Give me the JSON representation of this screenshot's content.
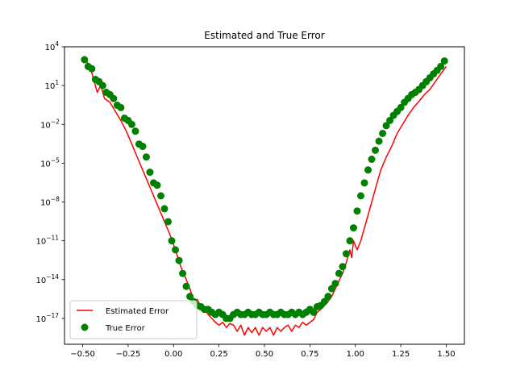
{
  "chart_data": {
    "type": "line",
    "title": "Estimated and True Error",
    "xlabel": "",
    "ylabel": "",
    "yscale": "log",
    "xlim": [
      -0.6,
      1.6
    ],
    "ylim": [
      1e-19,
      10000
    ],
    "xticks": [
      -0.5,
      -0.25,
      0.0,
      0.25,
      0.5,
      0.75,
      1.0,
      1.25,
      1.5
    ],
    "xtick_labels": [
      "−0.50",
      "−0.25",
      "0.00",
      "0.25",
      "0.50",
      "0.75",
      "1.00",
      "1.25",
      "1.50"
    ],
    "yticks": [
      1e-17,
      1e-14,
      1e-11,
      1e-08,
      1e-05,
      0.01,
      10,
      10000
    ],
    "ytick_labels": [
      {
        "base": "10",
        "exp": "−17"
      },
      {
        "base": "10",
        "exp": "−14"
      },
      {
        "base": "10",
        "exp": "−11"
      },
      {
        "base": "10",
        "exp": "−8"
      },
      {
        "base": "10",
        "exp": "−5"
      },
      {
        "base": "10",
        "exp": "−2"
      },
      {
        "base": "10",
        "exp": "1"
      },
      {
        "base": "10",
        "exp": "4"
      }
    ],
    "grid": false,
    "legend_position": "lower-left",
    "series": [
      {
        "name": "Estimated Error",
        "style": "line",
        "color": "#ff0000",
        "x": [
          -0.48,
          -0.45,
          -0.42,
          -0.4,
          -0.38,
          -0.35,
          -0.32,
          -0.29,
          -0.26,
          -0.23,
          -0.2,
          -0.17,
          -0.14,
          -0.11,
          -0.08,
          -0.05,
          -0.02,
          0.01,
          0.04,
          0.07,
          0.09,
          0.11,
          0.13,
          0.15,
          0.17,
          0.19,
          0.21,
          0.23,
          0.25,
          0.27,
          0.29,
          0.31,
          0.33,
          0.35,
          0.37,
          0.39,
          0.41,
          0.43,
          0.45,
          0.47,
          0.49,
          0.51,
          0.53,
          0.55,
          0.57,
          0.59,
          0.61,
          0.63,
          0.65,
          0.67,
          0.69,
          0.71,
          0.73,
          0.75,
          0.77,
          0.79,
          0.81,
          0.83,
          0.85,
          0.87,
          0.89,
          0.91,
          0.93,
          0.95,
          0.97,
          0.98,
          0.99,
          1.01,
          1.03,
          1.05,
          1.08,
          1.11,
          1.14,
          1.17,
          1.2,
          1.23,
          1.26,
          1.29,
          1.32,
          1.35,
          1.38,
          1.41,
          1.44,
          1.47,
          1.5
        ],
        "y": [
          1000,
          100,
          3,
          10,
          1,
          0.5,
          0.1,
          0.02,
          0.003,
          0.0003,
          3e-05,
          3e-06,
          3e-07,
          3e-08,
          3e-09,
          3e-10,
          3e-11,
          2e-12,
          1e-13,
          1e-14,
          2e-15,
          2e-16,
          3e-16,
          8e-17,
          5e-17,
          2e-17,
          1e-17,
          5e-18,
          3e-18,
          5e-18,
          2e-18,
          4e-18,
          3e-18,
          1e-18,
          3e-18,
          5e-19,
          2e-18,
          8e-19,
          2e-18,
          5e-19,
          2e-18,
          1e-18,
          2e-18,
          5e-19,
          2e-18,
          1e-18,
          2e-18,
          3e-18,
          1e-18,
          3e-18,
          2e-18,
          5e-18,
          3e-18,
          5e-18,
          8e-18,
          3e-17,
          5e-17,
          1e-16,
          2e-16,
          5e-16,
          2e-15,
          8e-15,
          3e-14,
          2e-13,
          2e-12,
          5e-13,
          1e-11,
          2e-12,
          1e-11,
          1e-10,
          3e-09,
          1e-07,
          3e-06,
          3e-05,
          0.0002,
          0.002,
          0.01,
          0.05,
          0.2,
          0.6,
          2,
          5,
          20,
          80,
          300
        ]
      },
      {
        "name": "True Error",
        "style": "marker",
        "color": "#008000",
        "x": [
          -0.49,
          -0.47,
          -0.45,
          -0.43,
          -0.41,
          -0.39,
          -0.37,
          -0.35,
          -0.33,
          -0.31,
          -0.29,
          -0.27,
          -0.25,
          -0.23,
          -0.21,
          -0.19,
          -0.17,
          -0.15,
          -0.13,
          -0.11,
          -0.09,
          -0.07,
          -0.05,
          -0.03,
          -0.01,
          0.01,
          0.03,
          0.05,
          0.07,
          0.09,
          0.11,
          0.13,
          0.15,
          0.17,
          0.19,
          0.21,
          0.23,
          0.25,
          0.27,
          0.29,
          0.31,
          0.33,
          0.35,
          0.37,
          0.39,
          0.41,
          0.43,
          0.45,
          0.47,
          0.49,
          0.51,
          0.53,
          0.55,
          0.57,
          0.59,
          0.61,
          0.63,
          0.65,
          0.67,
          0.69,
          0.71,
          0.73,
          0.75,
          0.77,
          0.79,
          0.81,
          0.83,
          0.85,
          0.87,
          0.89,
          0.91,
          0.93,
          0.95,
          0.97,
          0.99,
          1.01,
          1.03,
          1.05,
          1.07,
          1.09,
          1.11,
          1.13,
          1.15,
          1.17,
          1.19,
          1.21,
          1.23,
          1.25,
          1.27,
          1.29,
          1.31,
          1.33,
          1.35,
          1.37,
          1.39,
          1.41,
          1.43,
          1.45,
          1.47,
          1.49
        ],
        "y": [
          1000,
          300,
          200,
          30,
          20,
          10,
          3,
          2,
          1,
          0.3,
          0.2,
          0.03,
          0.02,
          0.01,
          0.003,
          0.0003,
          0.0002,
          3e-05,
          2e-06,
          3e-07,
          2e-07,
          3e-08,
          3e-09,
          3e-10,
          1e-11,
          2e-12,
          3e-13,
          3e-14,
          3e-15,
          5e-16,
          2e-16,
          1e-16,
          8e-17,
          5e-17,
          5e-17,
          3e-17,
          2e-17,
          3e-17,
          2e-17,
          1e-17,
          1e-17,
          2e-17,
          3e-17,
          2e-17,
          2e-17,
          3e-17,
          2e-17,
          2e-17,
          3e-17,
          2e-17,
          2e-17,
          3e-17,
          2e-17,
          2e-17,
          3e-17,
          2e-17,
          2e-17,
          3e-17,
          2e-17,
          3e-17,
          2e-17,
          3e-17,
          5e-17,
          3e-17,
          8e-17,
          1e-16,
          2e-16,
          5e-16,
          2e-15,
          5e-15,
          3e-14,
          1e-13,
          1e-12,
          1e-11,
          1e-10,
          2e-09,
          3e-08,
          3e-07,
          3e-06,
          2e-05,
          0.0001,
          0.0005,
          0.002,
          0.008,
          0.02,
          0.05,
          0.1,
          0.2,
          0.5,
          1,
          2,
          3,
          5,
          10,
          20,
          40,
          80,
          150,
          300,
          800
        ]
      }
    ]
  }
}
